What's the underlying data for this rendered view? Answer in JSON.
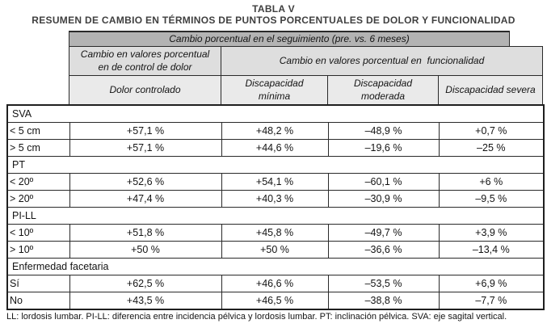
{
  "title": "TABLA V",
  "subtitle": "RESUMEN DE CAMBIO EN TÉRMINOS DE PUNTOS PORCENTUALES DE DOLOR Y FUNCIONALIDAD",
  "header": {
    "band1": "Cambio porcentual en el seguimiento (pre. vs. 6 meses)",
    "band2_left": "Cambio en valores porcentual\nen de control de dolor",
    "band2_right": "Cambio en valores porcentual en  funcionalidad",
    "columns": [
      "Dolor controlado",
      "Discapacidad\nmínima",
      "Discapacidad\nmoderada",
      "Discapacidad severa"
    ]
  },
  "sections": [
    {
      "label": "SVA",
      "rows": [
        {
          "label": "< 5 cm",
          "values": [
            "+57,1 %",
            "+48,2 %",
            "–48,9 %",
            "+0,7 %"
          ]
        },
        {
          "label": "> 5 cm",
          "values": [
            "+57,1 %",
            "+44,6 %",
            "–19,6 %",
            "–25 %"
          ]
        }
      ]
    },
    {
      "label": "PT",
      "rows": [
        {
          "label": "< 20º",
          "values": [
            "+52,6 %",
            "+54,1 %",
            "–60,1 %",
            "+6 %"
          ]
        },
        {
          "label": "> 20º",
          "values": [
            "+47,4 %",
            "+40,3 %",
            "–30,9 %",
            "–9,5 %"
          ]
        }
      ]
    },
    {
      "label": "PI-LL",
      "rows": [
        {
          "label": "< 10º",
          "values": [
            "+51,8 %",
            "+45,8 %",
            "–49,7 %",
            "+3,9 %"
          ]
        },
        {
          "label": "> 10º",
          "values": [
            "+50 %",
            "+50 %",
            "–36,6 %",
            "–13,4 %"
          ]
        }
      ]
    },
    {
      "label": "Enfermedad facetaria",
      "rows": [
        {
          "label": "Sí",
          "values": [
            "+62,5 %",
            "+46,6 %",
            "–53,5 %",
            "+6,9 %"
          ]
        },
        {
          "label": "No",
          "values": [
            "+43,5 %",
            "+46,5 %",
            "–38,8 %",
            "–7,7 %"
          ]
        }
      ]
    }
  ],
  "footnote": "LL: lordosis lumbar. PI-LL: diferencia entre incidencia pélvica y lordosis lumbar. PT: inclinación pélvica. SVA: eje sagital vertical.",
  "colors": {
    "band1_bg": "#b3b3b3",
    "band2_bg": "#dedede",
    "band3_bg": "#eaeaea",
    "border": "#2a2a2a"
  }
}
